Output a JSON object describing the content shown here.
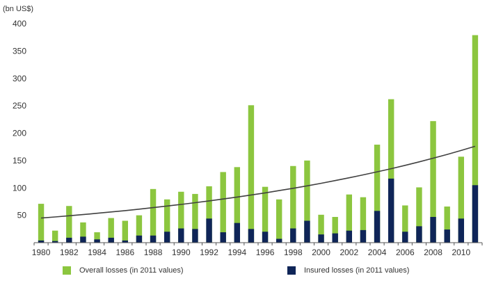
{
  "chart_data": {
    "type": "bar",
    "unit_label": "(bn US$)",
    "x": [
      1980,
      1981,
      1982,
      1983,
      1984,
      1985,
      1986,
      1987,
      1988,
      1989,
      1990,
      1991,
      1992,
      1993,
      1994,
      1995,
      1996,
      1997,
      1998,
      1999,
      2000,
      2001,
      2002,
      2003,
      2004,
      2005,
      2006,
      2007,
      2008,
      2009,
      2010,
      2011
    ],
    "x_tick_labels": [
      "1980",
      "1982",
      "1984",
      "1986",
      "1988",
      "1990",
      "1992",
      "1994",
      "1996",
      "1998",
      "2000",
      "2002",
      "2004",
      "2006",
      "2008",
      "2010"
    ],
    "series": [
      {
        "name": "Overall losses (in 2011 values)",
        "color": "#8cc63f",
        "values": [
          71,
          22,
          67,
          37,
          19,
          45,
          40,
          50,
          98,
          79,
          93,
          89,
          103,
          129,
          138,
          251,
          102,
          79,
          140,
          150,
          51,
          47,
          88,
          83,
          179,
          262,
          68,
          101,
          222,
          66,
          157,
          379
        ]
      },
      {
        "name": "Insured losses (in 2011 values)",
        "color": "#0f2558",
        "values": [
          4,
          3,
          9,
          11,
          6,
          9,
          4,
          13,
          13,
          20,
          26,
          25,
          44,
          19,
          36,
          25,
          20,
          7,
          26,
          40,
          15,
          17,
          22,
          23,
          58,
          117,
          20,
          30,
          47,
          24,
          44,
          105
        ]
      }
    ],
    "trend": {
      "color": "#404040",
      "start": 45,
      "end": 176
    },
    "ylim": [
      0,
      400
    ],
    "yticks": [
      50,
      100,
      150,
      200,
      250,
      300,
      350,
      400
    ],
    "grid": false,
    "legend_position": "bottom"
  }
}
